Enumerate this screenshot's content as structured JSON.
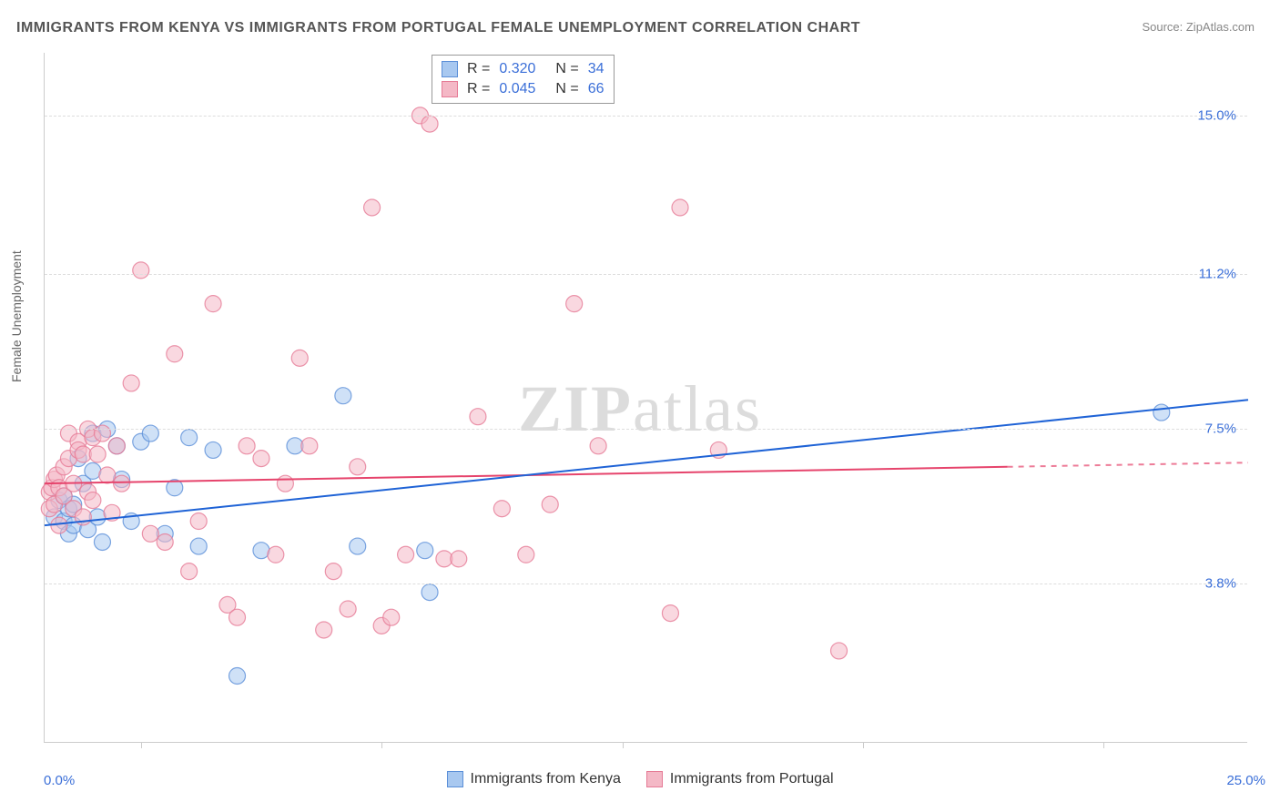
{
  "title": "IMMIGRANTS FROM KENYA VS IMMIGRANTS FROM PORTUGAL FEMALE UNEMPLOYMENT CORRELATION CHART",
  "source_label": "Source: ",
  "source_name": "ZipAtlas.com",
  "y_axis_label": "Female Unemployment",
  "watermark_bold": "ZIP",
  "watermark_rest": "atlas",
  "chart": {
    "type": "scatter-with-trend",
    "background_color": "#ffffff",
    "grid_color": "#dddddd",
    "axis_color": "#cccccc",
    "label_color": "#3b6fd8",
    "text_color": "#666666",
    "x_domain": [
      0,
      25
    ],
    "y_domain": [
      0,
      16.5
    ],
    "x_origin_label": "0.0%",
    "x_max_label": "25.0%",
    "y_grid_values": [
      3.8,
      7.5,
      11.2,
      15.0
    ],
    "y_grid_labels": [
      "3.8%",
      "7.5%",
      "11.2%",
      "15.0%"
    ],
    "x_tick_values": [
      2,
      7,
      12,
      17,
      22
    ],
    "marker_radius": 9,
    "marker_opacity": 0.55,
    "line_width": 2,
    "series": [
      {
        "key": "kenya",
        "label": "Immigrants from Kenya",
        "color_fill": "#a8c8f0",
        "color_stroke": "#5b8fd8",
        "line_color": "#1f63d6",
        "R": "0.320",
        "N": "34",
        "trend": {
          "x1": 0,
          "y1": 5.2,
          "x2": 25,
          "y2": 8.2,
          "dashed_from_x": null
        },
        "points": [
          [
            0.2,
            5.4
          ],
          [
            0.3,
            5.8
          ],
          [
            0.4,
            5.9
          ],
          [
            0.4,
            5.3
          ],
          [
            0.5,
            5.6
          ],
          [
            0.5,
            5.0
          ],
          [
            0.6,
            5.7
          ],
          [
            0.6,
            5.2
          ],
          [
            0.7,
            6.8
          ],
          [
            0.8,
            6.2
          ],
          [
            0.9,
            5.1
          ],
          [
            1.0,
            6.5
          ],
          [
            1.0,
            7.4
          ],
          [
            1.1,
            5.4
          ],
          [
            1.2,
            4.8
          ],
          [
            1.3,
            7.5
          ],
          [
            1.5,
            7.1
          ],
          [
            1.6,
            6.3
          ],
          [
            1.8,
            5.3
          ],
          [
            2.0,
            7.2
          ],
          [
            2.2,
            7.4
          ],
          [
            2.5,
            5.0
          ],
          [
            2.7,
            6.1
          ],
          [
            3.0,
            7.3
          ],
          [
            3.2,
            4.7
          ],
          [
            3.5,
            7.0
          ],
          [
            4.0,
            1.6
          ],
          [
            4.5,
            4.6
          ],
          [
            5.2,
            7.1
          ],
          [
            6.2,
            8.3
          ],
          [
            6.5,
            4.7
          ],
          [
            8.0,
            3.6
          ],
          [
            7.9,
            4.6
          ],
          [
            23.2,
            7.9
          ]
        ]
      },
      {
        "key": "portugal",
        "label": "Immigrants from Portugal",
        "color_fill": "#f4b8c6",
        "color_stroke": "#e67b96",
        "line_color": "#e6446c",
        "R": "0.045",
        "N": "66",
        "trend": {
          "x1": 0,
          "y1": 6.2,
          "x2": 25,
          "y2": 6.7,
          "dashed_from_x": 20
        },
        "points": [
          [
            0.1,
            6.0
          ],
          [
            0.1,
            5.6
          ],
          [
            0.15,
            6.1
          ],
          [
            0.2,
            6.3
          ],
          [
            0.2,
            5.7
          ],
          [
            0.25,
            6.4
          ],
          [
            0.3,
            5.2
          ],
          [
            0.3,
            6.1
          ],
          [
            0.4,
            5.9
          ],
          [
            0.4,
            6.6
          ],
          [
            0.5,
            7.4
          ],
          [
            0.5,
            6.8
          ],
          [
            0.6,
            6.2
          ],
          [
            0.6,
            5.6
          ],
          [
            0.7,
            7.2
          ],
          [
            0.7,
            7.0
          ],
          [
            0.8,
            6.9
          ],
          [
            0.8,
            5.4
          ],
          [
            0.9,
            7.5
          ],
          [
            0.9,
            6.0
          ],
          [
            1.0,
            7.3
          ],
          [
            1.0,
            5.8
          ],
          [
            1.1,
            6.9
          ],
          [
            1.2,
            7.4
          ],
          [
            1.3,
            6.4
          ],
          [
            1.4,
            5.5
          ],
          [
            1.5,
            7.1
          ],
          [
            1.6,
            6.2
          ],
          [
            1.8,
            8.6
          ],
          [
            2.0,
            11.3
          ],
          [
            2.2,
            5.0
          ],
          [
            2.5,
            4.8
          ],
          [
            2.7,
            9.3
          ],
          [
            3.0,
            4.1
          ],
          [
            3.2,
            5.3
          ],
          [
            3.5,
            10.5
          ],
          [
            3.8,
            3.3
          ],
          [
            4.0,
            3.0
          ],
          [
            4.2,
            7.1
          ],
          [
            4.5,
            6.8
          ],
          [
            4.8,
            4.5
          ],
          [
            5.0,
            6.2
          ],
          [
            5.3,
            9.2
          ],
          [
            5.5,
            7.1
          ],
          [
            5.8,
            2.7
          ],
          [
            6.0,
            4.1
          ],
          [
            6.3,
            3.2
          ],
          [
            6.5,
            6.6
          ],
          [
            6.8,
            12.8
          ],
          [
            7.0,
            2.8
          ],
          [
            7.2,
            3.0
          ],
          [
            7.5,
            4.5
          ],
          [
            7.8,
            15.0
          ],
          [
            8.0,
            14.8
          ],
          [
            8.3,
            4.4
          ],
          [
            8.6,
            4.4
          ],
          [
            9.0,
            7.8
          ],
          [
            9.5,
            5.6
          ],
          [
            10.0,
            4.5
          ],
          [
            10.5,
            5.7
          ],
          [
            11.0,
            10.5
          ],
          [
            11.5,
            7.1
          ],
          [
            13.0,
            3.1
          ],
          [
            13.2,
            12.8
          ],
          [
            14.0,
            7.0
          ],
          [
            16.5,
            2.2
          ]
        ]
      }
    ]
  },
  "legend_top": {
    "r_label": "R =",
    "n_label": "N ="
  }
}
